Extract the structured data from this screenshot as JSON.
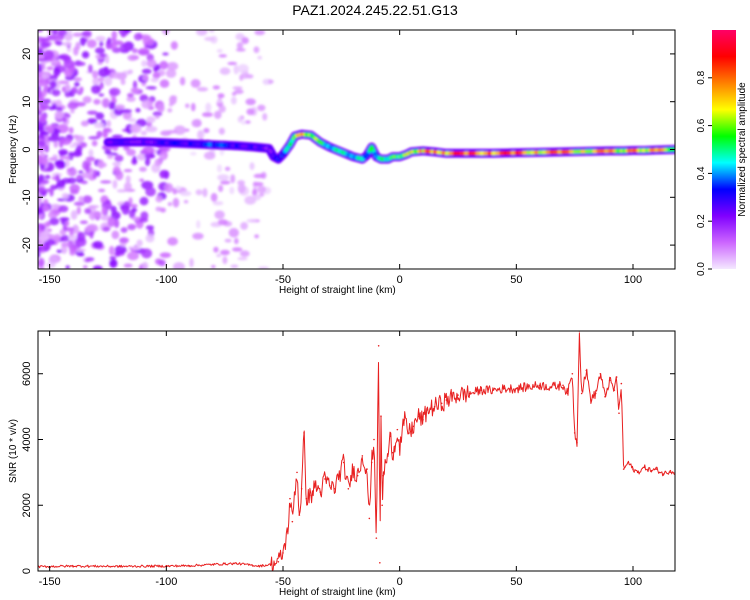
{
  "title": "PAZ1.2024.245.22.51.G13",
  "chart_data": [
    {
      "type": "heatmap",
      "title": "PAZ1.2024.245.22.51.G13",
      "xlabel": "Height of straight line (km)",
      "ylabel": "Frequency (Hz)",
      "xlim": [
        -155,
        118
      ],
      "ylim": [
        -25,
        25
      ],
      "xticks": [
        -150,
        -100,
        -50,
        0,
        50,
        100
      ],
      "yticks": [
        -20,
        -10,
        0,
        10,
        20
      ],
      "grid": false,
      "colorbar": {
        "label": "Normalized spectral amplitude",
        "range": [
          0,
          1
        ],
        "ticks": [
          0.0,
          0.2,
          0.4,
          0.6,
          0.8
        ],
        "colormap": [
          "#f4e8ff",
          "#cc66ff",
          "#8000ff",
          "#0000ff",
          "#00ffff",
          "#00ff00",
          "#ffff00",
          "#ff8000",
          "#ff0000",
          "#ff0066"
        ]
      },
      "ridge": {
        "x": [
          -125,
          -110,
          -100,
          -90,
          -80,
          -70,
          -62,
          -56,
          -54,
          -52,
          -50,
          -47,
          -45,
          -42,
          -38,
          -34,
          -30,
          -25,
          -20,
          -16,
          -14,
          -12,
          -10,
          -8,
          -5,
          -3,
          0,
          3,
          5,
          10,
          15,
          20,
          30,
          40,
          50,
          60,
          70,
          80,
          90,
          96,
          100,
          105,
          110,
          118
        ],
        "y": [
          1.5,
          1.6,
          1.4,
          1.2,
          1.0,
          0.8,
          0.5,
          0.2,
          -1.5,
          -2.0,
          -1.0,
          1.0,
          2.8,
          3.2,
          3.0,
          1.5,
          0.5,
          -0.5,
          -1.5,
          -2.0,
          -1.2,
          0.5,
          -1.5,
          -2.0,
          -2.0,
          -1.5,
          -1.5,
          -1.0,
          -0.5,
          -0.3,
          -0.5,
          -0.8,
          -0.8,
          -0.8,
          -0.7,
          -0.6,
          -0.5,
          -0.4,
          -0.3,
          -0.3,
          -0.2,
          -0.2,
          -0.1,
          0.0
        ],
        "amplitude": [
          0.25,
          0.3,
          0.3,
          0.35,
          0.4,
          0.35,
          0.3,
          0.25,
          0.3,
          0.35,
          0.4,
          0.55,
          0.7,
          0.8,
          0.75,
          0.6,
          0.55,
          0.5,
          0.55,
          0.5,
          0.45,
          0.6,
          0.5,
          0.55,
          0.6,
          0.6,
          0.65,
          0.7,
          0.75,
          0.85,
          0.9,
          0.92,
          0.95,
          0.95,
          0.9,
          0.88,
          0.85,
          0.85,
          0.82,
          0.8,
          0.85,
          0.85,
          0.8,
          0.75
        ]
      }
    },
    {
      "type": "line",
      "xlabel": "Height of straight line (km)",
      "ylabel": "SNR (10 * v/v)",
      "xlim": [
        -155,
        118
      ],
      "ylim": [
        0,
        7300
      ],
      "xticks": [
        -150,
        -100,
        -50,
        0,
        50,
        100
      ],
      "yticks": [
        0,
        2000,
        4000,
        6000
      ],
      "grid": false,
      "series": [
        {
          "color": "#e82020",
          "x": [
            -155,
            -140,
            -120,
            -100,
            -90,
            -80,
            -70,
            -60,
            -55,
            -52,
            -50,
            -48,
            -47,
            -46,
            -45,
            -44,
            -43,
            -42,
            -41,
            -40,
            -38,
            -36,
            -34,
            -32,
            -30,
            -28,
            -26,
            -24,
            -22,
            -20,
            -18,
            -16,
            -14,
            -13,
            -12,
            -11,
            -10,
            -9,
            -8.5,
            -8,
            -7.5,
            -7,
            -6,
            -5,
            -4,
            -3,
            -2,
            -1,
            0,
            2,
            4,
            6,
            8,
            10,
            12,
            15,
            18,
            20,
            25,
            30,
            35,
            40,
            45,
            50,
            55,
            60,
            65,
            70,
            72,
            74,
            75,
            76,
            77,
            78,
            80,
            82,
            84,
            86,
            88,
            90,
            92,
            93,
            94,
            95,
            96,
            98,
            100,
            102,
            105,
            108,
            110,
            113,
            116,
            118
          ],
          "y": [
            130,
            150,
            140,
            150,
            160,
            200,
            230,
            150,
            200,
            280,
            550,
            1200,
            2200,
            1500,
            2400,
            3000,
            1700,
            2500,
            4200,
            2200,
            2300,
            2600,
            2400,
            2800,
            2600,
            2500,
            2900,
            3300,
            2500,
            3100,
            2900,
            3500,
            3100,
            1600,
            3300,
            4000,
            1000,
            6850,
            250,
            4700,
            2000,
            2900,
            3300,
            3500,
            4100,
            3600,
            3800,
            4300,
            3700,
            4600,
            4200,
            4400,
            4700,
            4600,
            4900,
            5000,
            5100,
            5200,
            5350,
            5400,
            5500,
            5500,
            5550,
            5550,
            5600,
            5650,
            5600,
            5650,
            5400,
            6000,
            4200,
            3900,
            7300,
            5400,
            6100,
            5200,
            5400,
            6000,
            5300,
            5800,
            5500,
            5900,
            4800,
            5700,
            3100,
            3300,
            3100,
            3000,
            3150,
            3050,
            3100,
            2950,
            3050,
            3000
          ]
        }
      ]
    }
  ]
}
